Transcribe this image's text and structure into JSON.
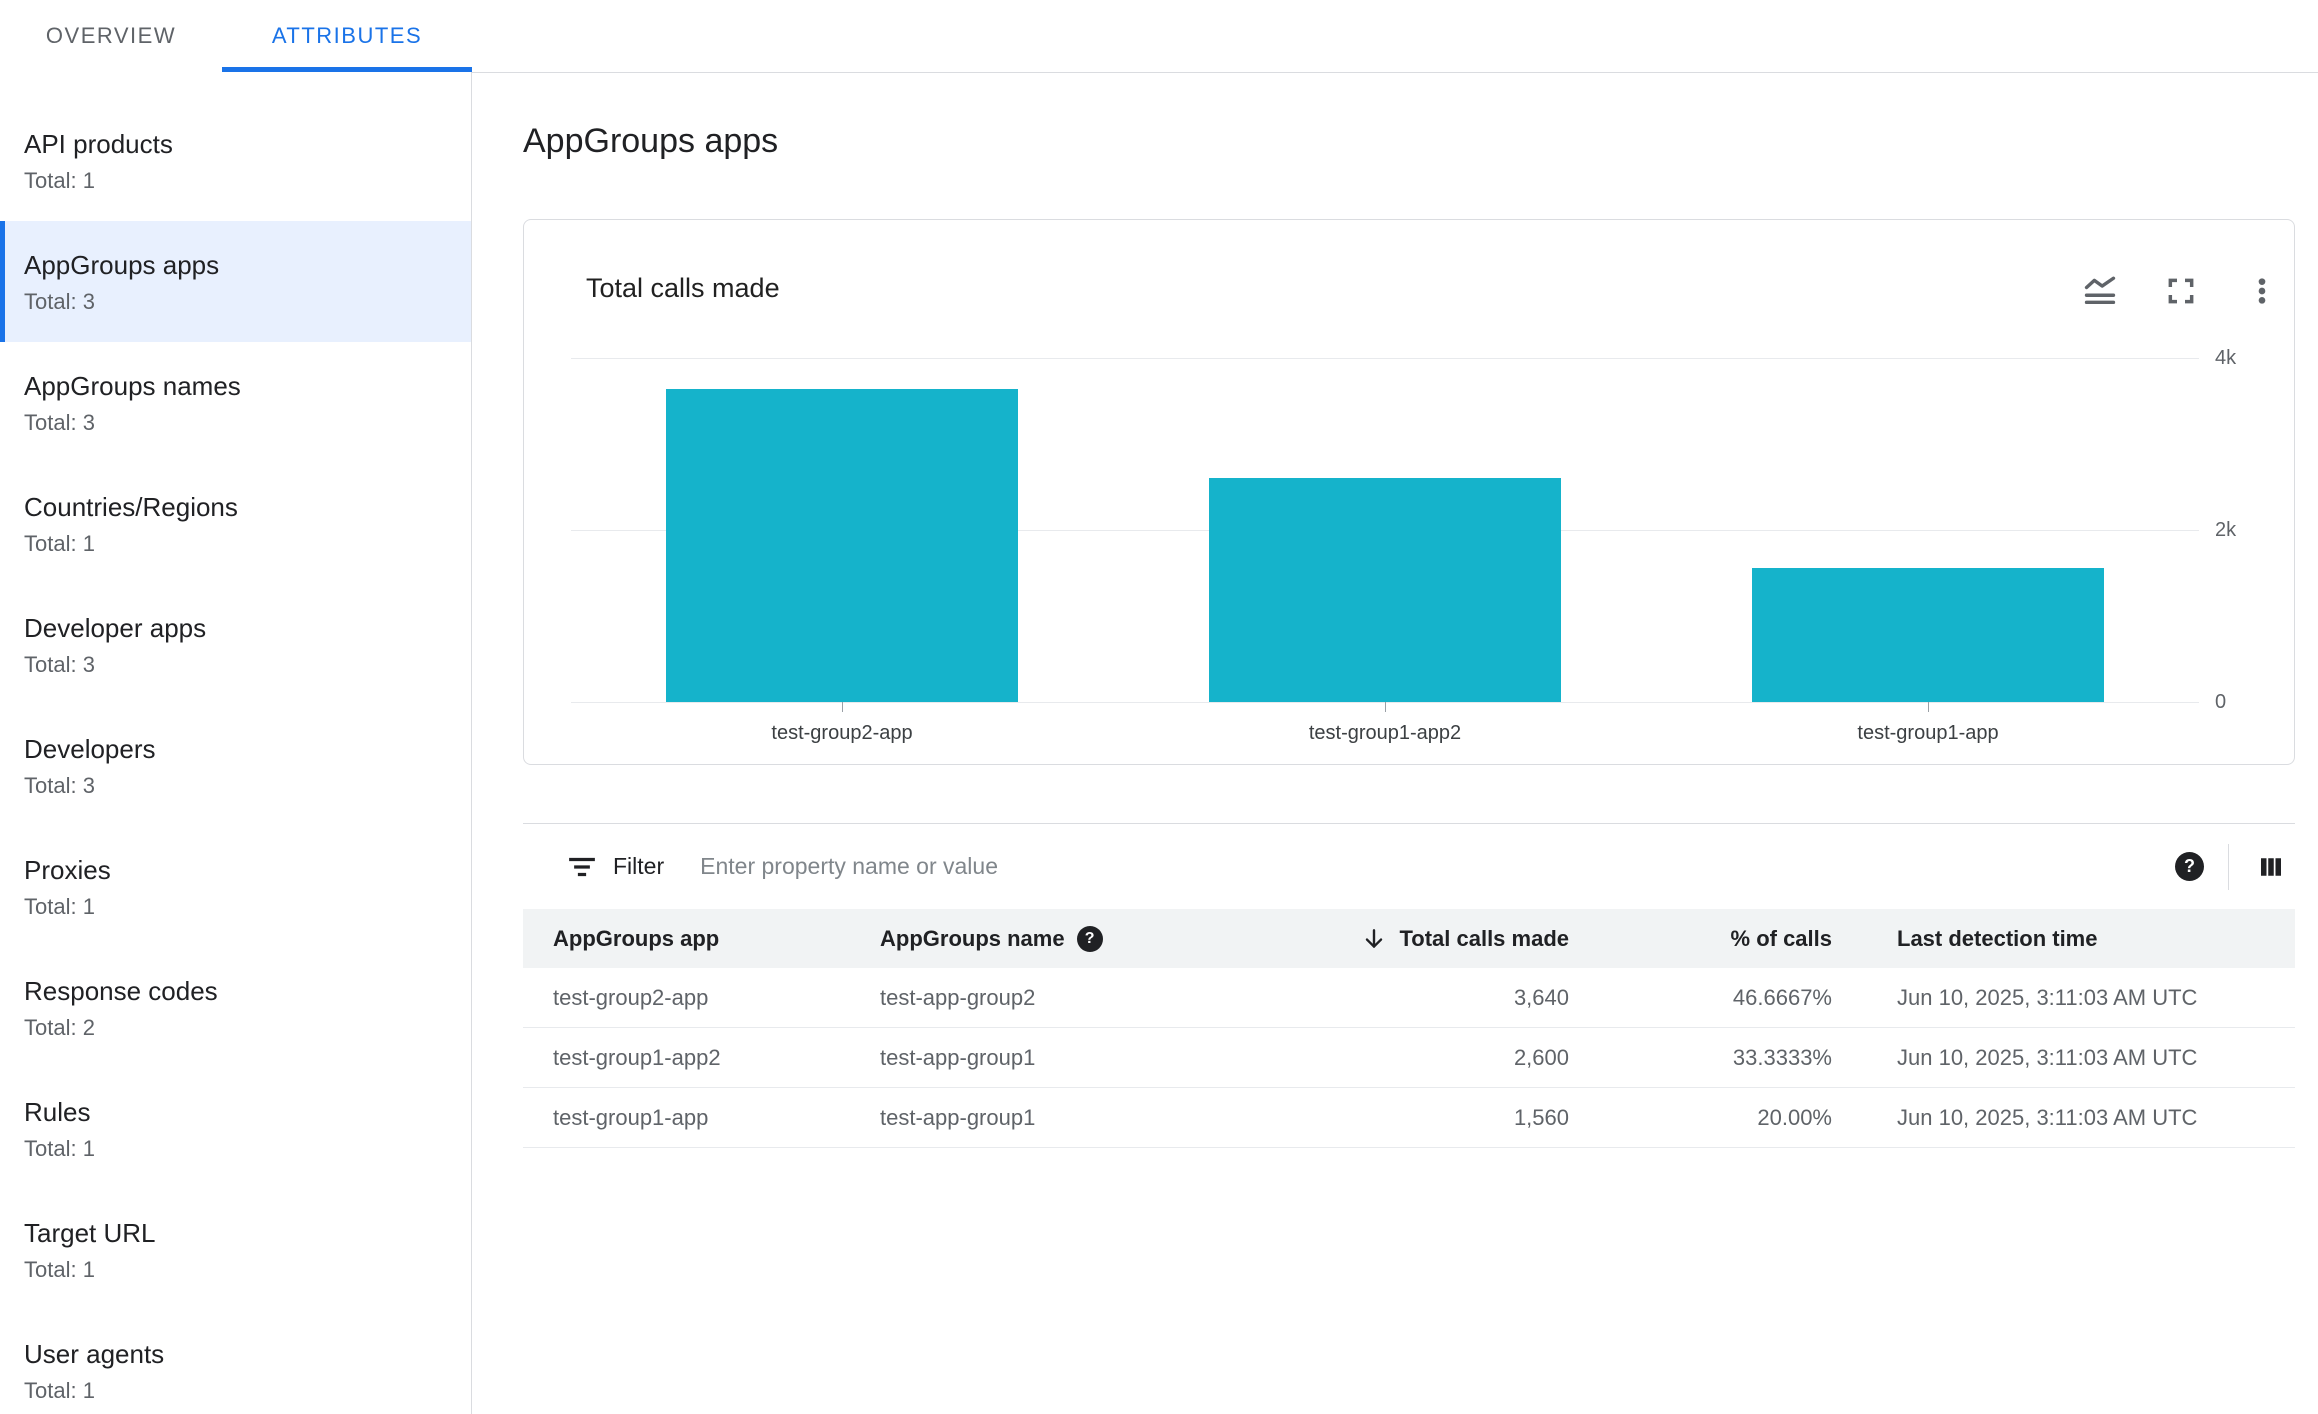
{
  "tabs": {
    "items": [
      {
        "label": "OVERVIEW",
        "active": false
      },
      {
        "label": "ATTRIBUTES",
        "active": true
      }
    ]
  },
  "sidebar": {
    "items": [
      {
        "label": "API products",
        "total": "Total: 1",
        "selected": false
      },
      {
        "label": "AppGroups apps",
        "total": "Total: 3",
        "selected": true
      },
      {
        "label": "AppGroups names",
        "total": "Total: 3",
        "selected": false
      },
      {
        "label": "Countries/Regions",
        "total": "Total: 1",
        "selected": false
      },
      {
        "label": "Developer apps",
        "total": "Total: 3",
        "selected": false
      },
      {
        "label": "Developers",
        "total": "Total: 3",
        "selected": false
      },
      {
        "label": "Proxies",
        "total": "Total: 1",
        "selected": false
      },
      {
        "label": "Response codes",
        "total": "Total: 2",
        "selected": false
      },
      {
        "label": "Rules",
        "total": "Total: 1",
        "selected": false
      },
      {
        "label": "Target URL",
        "total": "Total: 1",
        "selected": false
      },
      {
        "label": "User agents",
        "total": "Total: 1",
        "selected": false
      }
    ]
  },
  "main": {
    "title": "AppGroups apps"
  },
  "card": {
    "title": "Total calls made",
    "icons": [
      "chart-type",
      "fullscreen",
      "more-options"
    ]
  },
  "chart_data": {
    "type": "bar",
    "title": "Total calls made",
    "categories": [
      "test-group2-app",
      "test-group1-app2",
      "test-group1-app"
    ],
    "values": [
      3640,
      2600,
      1560
    ],
    "xlabel": "",
    "ylabel": "",
    "ylim": [
      0,
      4000
    ],
    "yticks": [
      {
        "value": 4000,
        "label": "4k"
      },
      {
        "value": 2000,
        "label": "2k"
      },
      {
        "value": 0,
        "label": "0"
      }
    ],
    "y_axis_side": "right",
    "grid": "horizontal",
    "legend": "none",
    "bar_color": "#15b3cb"
  },
  "filter": {
    "label": "Filter",
    "placeholder": "Enter property name or value"
  },
  "table": {
    "columns": [
      {
        "label": "AppGroups app"
      },
      {
        "label": "AppGroups name",
        "help_icon": true
      },
      {
        "label": "Total calls made",
        "sorted": "desc",
        "align": "right"
      },
      {
        "label": "% of calls",
        "align": "right"
      },
      {
        "label": "Last detection time"
      }
    ],
    "rows": [
      [
        "test-group2-app",
        "test-app-group2",
        "3,640",
        "46.6667%",
        "Jun 10, 2025, 3:11:03 AM UTC"
      ],
      [
        "test-group1-app2",
        "test-app-group1",
        "2,600",
        "33.3333%",
        "Jun 10, 2025, 3:11:03 AM UTC"
      ],
      [
        "test-group1-app",
        "test-app-group1",
        "1,560",
        "20.00%",
        "Jun 10, 2025, 3:11:03 AM UTC"
      ]
    ]
  },
  "colors": {
    "accent": "#1a73e8",
    "selected_bg": "#e8f0fe",
    "bar": "#15b3cb",
    "text_primary": "#202124",
    "text_secondary": "#5f6368",
    "border": "#dadce0",
    "gridline": "#e8eaed",
    "table_header_bg": "#f1f3f4"
  }
}
